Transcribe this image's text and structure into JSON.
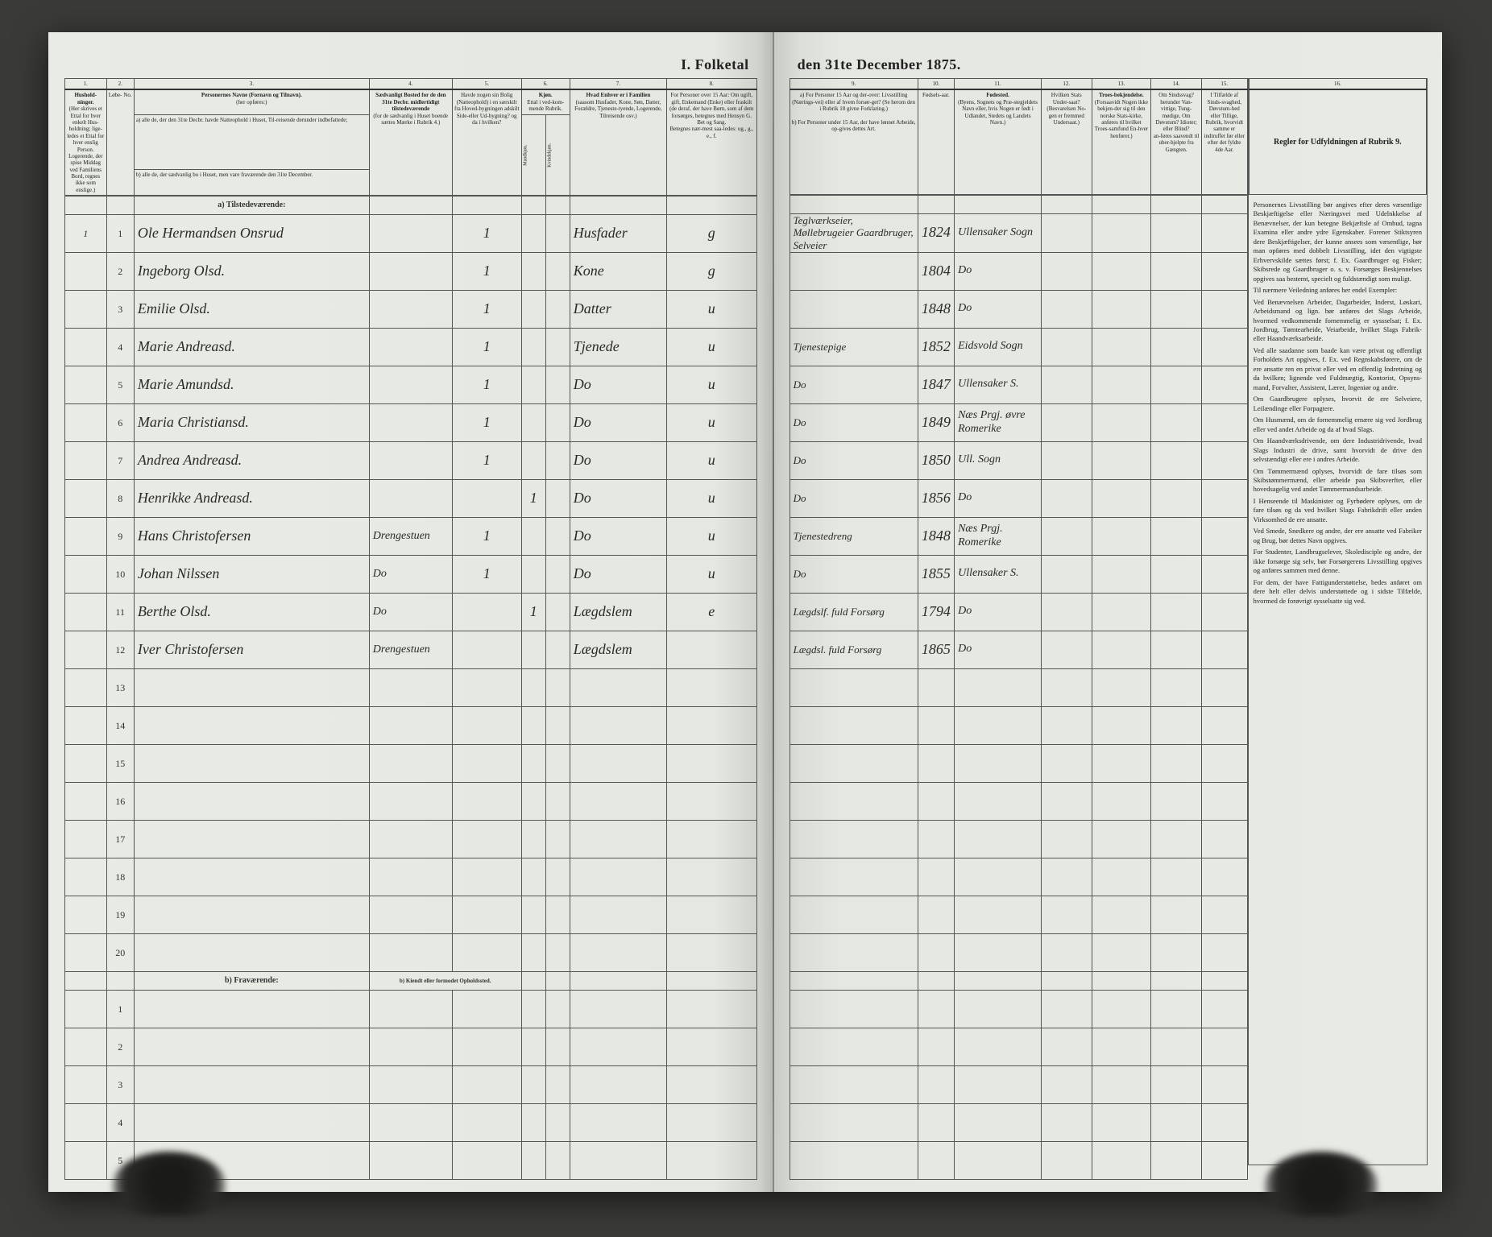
{
  "title_left": "I. Folketal",
  "title_right": "den 31te December 1875.",
  "columns_left": {
    "c1": {
      "num": "1.",
      "head": "Hushold-\nninger.",
      "sub": "(Her skrives et Ettal for hver enkelt Hus-holdning; lige-ledes et Ettal for hver enslig Person. Logerende, der spise Middag ved Familiens Bord, regnes ikke som enslige.)"
    },
    "c2": {
      "num": "2.",
      "head": "",
      "sub": "Løbe- No."
    },
    "c3": {
      "num": "3.",
      "head": "Personernes Navne (Fornavn og Tilnavn).",
      "sub_a": "a) alle de, der den 31te Decbr. havde Natteophold i Huset, Til-reisende derunder indbefattede;",
      "sub_b": "b) alle de, der sædvanlig bo i Huset, men vare fraværende den 31te December."
    },
    "c4": {
      "num": "4.",
      "head": "Sædvanligt Bosted for de den 31te Decbr. midlertidigt tilstedeværende",
      "sub": "(for de sædvanlig i Huset boende sættes Mærke i Rubrik 4.)"
    },
    "c5": {
      "num": "5.",
      "head": "Havde nogen sin Bolig (Natteophold) i en særskilt fra Hoved-bygningen adskilt Side-eller Ud-bygning? og da i hvilken?",
      "sub": ""
    },
    "c6": {
      "num": "6.",
      "head": "Kjøn.",
      "sub": "Ettal i ved-kom-mende Rubrik.",
      "m": "Mandkjøn.",
      "k": "Kvindekjøn."
    },
    "c7": {
      "num": "7.",
      "head": "Hvad Enhver er i Familien",
      "sub": "(saasom Husfader, Kone, Søn, Datter, Forældre, Tjeneste-tyende, Logerende, Tilreisende osv.)"
    },
    "c8": {
      "num": "8.",
      "head": "For Personer over 15 Aar: Om ugift, gift, Enkemand (Enke) eller fraskilt (de deraf, der have Børn, som af dem forsørges, betegnes med Hensyn G. Bet og Sang.",
      "sub": "Betegnes nær-mest saa-ledes: ug., g., e., f."
    }
  },
  "columns_right": {
    "c9": {
      "num": "9.",
      "head_a": "a) For Personer 15 Aar og der-over: Livsstilling (Nærings-vei) eller af hvem forsør-get? (Se herom den i Rubrik 18 givne Forklaring.)",
      "head_b": "b) For Personer under 15 Aar, der have lønnet Arbeide, op-gives dettes Art."
    },
    "c10": {
      "num": "10.",
      "head": "Fødsels-aar."
    },
    "c11": {
      "num": "11.",
      "head": "Fødested.",
      "sub": "(Byens, Sognets og Præ-stegjeldets Navn eller, hvis Nogen er født i Udlandet, Stedets og Landets Navn.)"
    },
    "c12": {
      "num": "12.",
      "head": "Hvilken Stats Under-saat?",
      "sub": "(Besvarelsen No-gen er fremmed Undersaat.)"
    },
    "c13": {
      "num": "13.",
      "head": "Troes-bekjendelse.",
      "sub": "(Forsaavidt Nogen ikke bekjen-der sig til den norske Stats-kirke, anføres til hvilket Troes-samfund En-hver henfører.)"
    },
    "c14": {
      "num": "14.",
      "head": "Om Sindssvag? herunder Van-vittige, Tung-mødige, Om Døvstum? Idioter; eller Blind?",
      "sub": "an-føres saavendt til uber-hjelpte fra Gængten."
    },
    "c15": {
      "num": "15.",
      "head": "I Tilfælde af Sinds-svaghed, Døvstum-hed eller Tillige, Rubrik, hvorvidt samme er indtruffet før eller efter det fyldte 4de Aar."
    },
    "c16": {
      "num": "16.",
      "head": "Regler for Udfyldningen af Rubrik 9."
    }
  },
  "section_a": "a) Tilstedeværende:",
  "section_b": "b) Fraværende:",
  "section_b_col4": "b) Kiendt eller formodet Opholdssted.",
  "rows": [
    {
      "n": "1",
      "p": "1",
      "name": "Ole Hermandsen Onsrud",
      "c4": "",
      "c5": "1",
      "m": "",
      "k": "",
      "fam": "Husfader",
      "civ": "g",
      "occ": "Teglværkseier, Møllebrugeier Gaardbruger, Selveier",
      "yr": "1824",
      "place": "Ullensaker Sogn",
      "c12": "",
      "c13": "",
      "c14": "",
      "c15": ""
    },
    {
      "n": "",
      "p": "2",
      "name": "Ingeborg Olsd.",
      "c4": "",
      "c5": "1",
      "m": "",
      "k": "",
      "fam": "Kone",
      "civ": "g",
      "occ": "",
      "yr": "1804",
      "place": "Do",
      "c12": "",
      "c13": "",
      "c14": "",
      "c15": ""
    },
    {
      "n": "",
      "p": "3",
      "name": "Emilie Olsd.",
      "c4": "",
      "c5": "1",
      "m": "",
      "k": "",
      "fam": "Datter",
      "civ": "u",
      "occ": "",
      "yr": "1848",
      "place": "Do",
      "c12": "",
      "c13": "",
      "c14": "",
      "c15": ""
    },
    {
      "n": "",
      "p": "4",
      "name": "Marie Andreasd.",
      "c4": "",
      "c5": "1",
      "m": "",
      "k": "",
      "fam": "Tjenede",
      "civ": "u",
      "occ": "Tjenestepige",
      "yr": "1852",
      "place": "Eidsvold Sogn",
      "c12": "",
      "c13": "",
      "c14": "",
      "c15": ""
    },
    {
      "n": "",
      "p": "5",
      "name": "Marie Amundsd.",
      "c4": "",
      "c5": "1",
      "m": "",
      "k": "",
      "fam": "Do",
      "civ": "u",
      "occ": "Do",
      "yr": "1847",
      "place": "Ullensaker S.",
      "c12": "",
      "c13": "",
      "c14": "",
      "c15": ""
    },
    {
      "n": "",
      "p": "6",
      "name": "Maria Christiansd.",
      "c4": "",
      "c5": "1",
      "m": "",
      "k": "",
      "fam": "Do",
      "civ": "u",
      "occ": "Do",
      "yr": "1849",
      "place": "Næs Prgj. øvre Romerike",
      "c12": "",
      "c13": "",
      "c14": "",
      "c15": ""
    },
    {
      "n": "",
      "p": "7",
      "name": "Andrea Andreasd.",
      "c4": "",
      "c5": "1",
      "m": "",
      "k": "",
      "fam": "Do",
      "civ": "u",
      "occ": "Do",
      "yr": "1850",
      "place": "Ull. Sogn",
      "c12": "",
      "c13": "",
      "c14": "",
      "c15": ""
    },
    {
      "n": "",
      "p": "8",
      "name": "Henrikke Andreasd.",
      "c4": "",
      "c5": "",
      "m": "1",
      "k": "",
      "fam": "Do",
      "civ": "u",
      "occ": "Do",
      "yr": "1856",
      "place": "Do",
      "c12": "",
      "c13": "",
      "c14": "",
      "c15": ""
    },
    {
      "n": "",
      "p": "9",
      "name": "Hans Christofersen",
      "c4": "Drengestuen",
      "c5": "1",
      "m": "",
      "k": "",
      "fam": "Do",
      "civ": "u",
      "occ": "Tjenestedreng",
      "yr": "1848",
      "place": "Næs Prgj. Romerike",
      "c12": "",
      "c13": "",
      "c14": "",
      "c15": ""
    },
    {
      "n": "",
      "p": "10",
      "name": "Johan Nilssen",
      "c4": "Do",
      "c5": "1",
      "m": "",
      "k": "",
      "fam": "Do",
      "civ": "u",
      "occ": "Do",
      "yr": "1855",
      "place": "Ullensaker S.",
      "c12": "",
      "c13": "",
      "c14": "",
      "c15": ""
    },
    {
      "n": "",
      "p": "11",
      "name": "Berthe Olsd.",
      "c4": "Do",
      "c5": "",
      "m": "1",
      "k": "",
      "fam": "Lægdslem",
      "civ": "e",
      "occ": "Lægdslf. fuld Forsørg",
      "yr": "1794",
      "place": "Do",
      "c12": "",
      "c13": "",
      "c14": "",
      "c15": ""
    },
    {
      "n": "",
      "p": "12",
      "name": "Iver Christofersen",
      "c4": "Drengestuen",
      "c5": "",
      "m": "",
      "k": "",
      "fam": "Lægdslem",
      "civ": "",
      "occ": "Lægdsl. fuld Forsørg",
      "yr": "1865",
      "place": "Do",
      "c12": "",
      "c13": "",
      "c14": "",
      "c15": ""
    }
  ],
  "empty_rows_a": [
    "13",
    "14",
    "15",
    "16",
    "17",
    "18",
    "19",
    "20"
  ],
  "empty_rows_b": [
    "1",
    "2",
    "3",
    "4",
    "5"
  ],
  "instructions": [
    "Personernes Livsstilling bør angives efter deres væsentlige Beskjæftigelse eller Næringsvei med Udelnkkelse af Benævnelser, der kun betegne Bekjæftsle af Ombud, tagna Examina eller andre ydre Egenskaber. Forener Stiktsyren dere Beskjæftigelser, der kunne ansees som væsentlige, bør man opføres med dobbelt Livsstilling, idet den vigtigste Erhvervskilde sættes først; f. Ex. Gaardbruger og Fisker; Skibsrede og Gaardbruger o. s. v. Forsørges Beskjennelses opgives saa bestemt, specielt og fuldstændigt som muligt.",
    "Til nærmere Veiledning anføres her endel Exempler:",
    "Ved Benævnelsen Arbeider, Dagarbeider, Inderst, Løskari, Arbeidsmand og lign. bør anføres det Slags Arbeide, hvormed vedkommende fornemmelig er syssselsat; f. Ex. Jordbrug, Tømtearheide, Veiarbeide, hvilket Slags Fabrik- eller Haandværksarbeide.",
    "Ved alle saadanne som baade kan være privat og offentligt Forholdets Art opgives, f. Ex. ved Regnskabsførere, om de ere ansatte ren en privat eller ved en offentlig Indretning og da hvilken; lignende ved Fuldmægtig, Kontorist, Opsyns-mand, Forvalter, Assistent, Lærer, Ingeniør og andre.",
    "Om Gaardbrugere oplyses, hvorvit de ere Selveiere, Leilændinge eller Forpagtere.",
    "Om Husmænd, om de fornemmelig ernære sig ved Jordbrug eller ved andet Arbeide og da af hvad Slags.",
    "Om Haandværksdrivende, om dere Industridrivende, hvad Slags Industri de drive, samt hvorvidt de drive den selvstændigt eller ere i andres Arbeide.",
    "Om Tømmermænd oplyses, hvorvidt de fare tilsøs som Skibstømmermænd, eller arbeide paa Skibsverfter, eller hovedsagelig ved andet Tømmermandsarbeide.",
    "I Henseende til Maskinister og Fyrbødere oplyses, om de fare tilsøs og da ved hvilket Slags Fabrikdrift eller anden Virksomhed de ere ansatte.",
    "Ved Smede, Snedkere og andre, der ere ansatte ved Fabriker og Brug, bør dettes Navn opgives.",
    "For Studenter, Landbrugselever, Skoledisciple og andre, der ikke forsørge sig selv, bør Forsørgerens Livsstilling opgives og anføres sammen med denne.",
    "For dem, der have Fattigunderstøttelse, bedes anføret om dere helt eller delvis understøttede og i sidste Tilfælde, hvormed de forøvrigt sysselsatte sig ved."
  ]
}
